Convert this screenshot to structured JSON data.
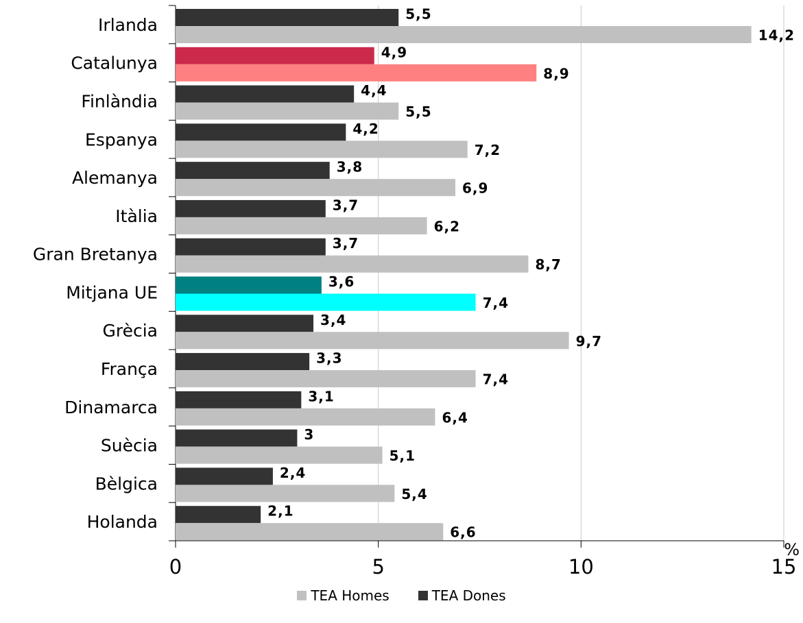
{
  "chart_data": {
    "type": "bar",
    "orientation": "horizontal",
    "unit": "%",
    "categories": [
      "Irlanda",
      "Catalunya",
      "Finlàndia",
      "Espanya",
      "Alemanya",
      "Itàlia",
      "Gran Bretanya",
      "Mitjana UE",
      "Grècia",
      "França",
      "Dinamarca",
      "Suècia",
      "Bèlgica",
      "Holanda"
    ],
    "series": [
      {
        "name": "TEA Dones",
        "color": "#333333",
        "values": [
          5.5,
          4.9,
          4.4,
          4.2,
          3.8,
          3.7,
          3.7,
          3.6,
          3.4,
          3.3,
          3.1,
          3,
          2.4,
          2.1
        ],
        "labels": [
          "5,5",
          "4,9",
          "4,4",
          "4,2",
          "3,8",
          "3,7",
          "3,7",
          "3,6",
          "3,4",
          "3,3",
          "3,1",
          "3",
          "2,4",
          "2,1"
        ]
      },
      {
        "name": "TEA Homes",
        "color": "#c0c0c0",
        "values": [
          14.2,
          8.9,
          5.5,
          7.2,
          6.9,
          6.2,
          8.7,
          7.4,
          9.7,
          7.4,
          6.4,
          5.1,
          5.4,
          6.6
        ],
        "labels": [
          "14,2",
          "8,9",
          "5,5",
          "7,2",
          "6,9",
          "6,2",
          "8,7",
          "7,4",
          "9,7",
          "7,4",
          "6,4",
          "5,1",
          "5,4",
          "6,6"
        ]
      }
    ],
    "highlights": {
      "Catalunya": {
        "TEA Dones": "#cc2a4a",
        "TEA Homes": "#ff8080"
      },
      "Mitjana UE": {
        "TEA Dones": "#008080",
        "TEA Homes": "#00ffff"
      }
    },
    "xlim": [
      0,
      15
    ],
    "xticks": [
      "0",
      "5",
      "10",
      "15"
    ],
    "grid": true,
    "legend_position": "bottom"
  },
  "legend": [
    {
      "label": "TEA Homes",
      "color": "#c0c0c0"
    },
    {
      "label": "TEA Dones",
      "color": "#333333"
    }
  ]
}
